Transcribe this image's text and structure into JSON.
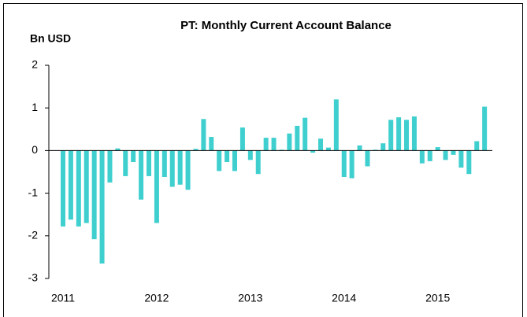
{
  "chart_data": {
    "type": "bar",
    "title": "PT: Monthly Current Account Balance",
    "y_label": "Bn USD",
    "categories": [
      "2011",
      null,
      null,
      null,
      null,
      null,
      null,
      null,
      null,
      null,
      null,
      null,
      "2012",
      null,
      null,
      null,
      null,
      null,
      null,
      null,
      null,
      null,
      null,
      null,
      "2013",
      null,
      null,
      null,
      null,
      null,
      null,
      null,
      null,
      null,
      null,
      null,
      "2014",
      null,
      null,
      null,
      null,
      null,
      null,
      null,
      null,
      null,
      null,
      null,
      "2015",
      null,
      null,
      null,
      null,
      null,
      null
    ],
    "values": [
      -1.78,
      -1.62,
      -1.78,
      -1.7,
      -2.08,
      -2.65,
      -0.75,
      0.05,
      -0.6,
      -0.27,
      -1.15,
      -0.6,
      -1.7,
      -0.62,
      -0.85,
      -0.8,
      -0.92,
      0.04,
      0.74,
      0.32,
      -0.48,
      -0.27,
      -0.48,
      0.54,
      -0.22,
      -0.55,
      0.3,
      0.3,
      0.02,
      0.4,
      0.58,
      0.77,
      -0.05,
      0.28,
      0.07,
      1.2,
      -0.62,
      -0.65,
      0.12,
      -0.37,
      0.02,
      0.17,
      0.72,
      0.78,
      0.72,
      0.8,
      -0.3,
      -0.25,
      0.08,
      -0.22,
      -0.1,
      -0.4,
      -0.55,
      0.22,
      1.03
    ],
    "color": "#3fcfcf",
    "ylim": [
      -3,
      2
    ],
    "yticks": [
      -3,
      -2,
      -1,
      0,
      1,
      2
    ],
    "grid": false
  }
}
